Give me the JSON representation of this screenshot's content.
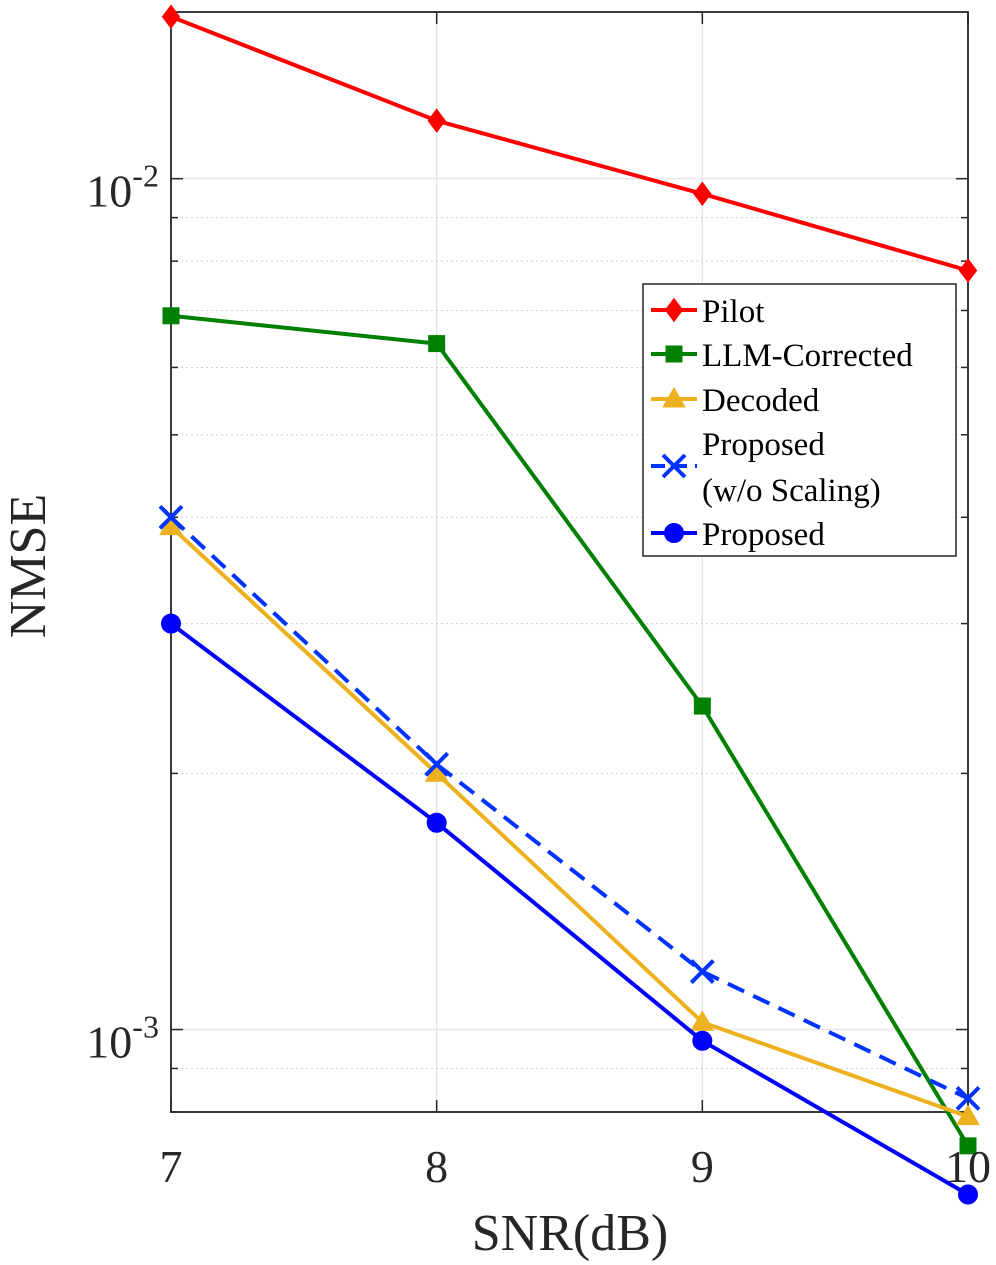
{
  "chart_data": {
    "type": "line",
    "xscale": "linear",
    "yscale": "log",
    "xlabel": "SNR(dB)",
    "ylabel": "NMSE",
    "xlim": [
      7,
      10
    ],
    "ylim": [
      0.0008,
      0.0157
    ],
    "grid": true,
    "legend_position": "top-right",
    "x": [
      7,
      8,
      9,
      10
    ],
    "x_tick_labels": [
      "7",
      "8",
      "9",
      "10"
    ],
    "y_ticks": [
      {
        "value": 0.01,
        "base": "10",
        "exp": "-2"
      },
      {
        "value": 0.001,
        "base": "10",
        "exp": "-3"
      }
    ],
    "series": [
      {
        "name": "Pilot",
        "legend_lines": [
          "Pilot"
        ],
        "color": "#ff0000",
        "marker": "diamond",
        "dash": "solid",
        "values": [
          0.0155,
          0.0117,
          0.0096,
          0.0078
        ]
      },
      {
        "name": "LLM-Corrected",
        "legend_lines": [
          "LLM-Corrected"
        ],
        "color": "#008000",
        "marker": "square",
        "dash": "solid",
        "values": [
          0.0069,
          0.0064,
          0.0024,
          0.00073
        ]
      },
      {
        "name": "Decoded",
        "legend_lines": [
          "Decoded"
        ],
        "color": "#edb120",
        "marker": "triangle",
        "dash": "solid",
        "values": [
          0.0039,
          0.002,
          0.00102,
          0.00079
        ]
      },
      {
        "name": "Proposed (w/o Scaling)",
        "legend_lines": [
          "Proposed",
          "(w/o Scaling)"
        ],
        "color": "#0033ff",
        "marker": "x",
        "dash": "dashed",
        "values": [
          0.004,
          0.00205,
          0.00117,
          0.00083
        ]
      },
      {
        "name": "Proposed",
        "legend_lines": [
          "Proposed"
        ],
        "color": "#0000ff",
        "marker": "circle",
        "dash": "solid",
        "values": [
          0.003,
          0.00175,
          0.00097,
          0.00064
        ]
      }
    ]
  }
}
